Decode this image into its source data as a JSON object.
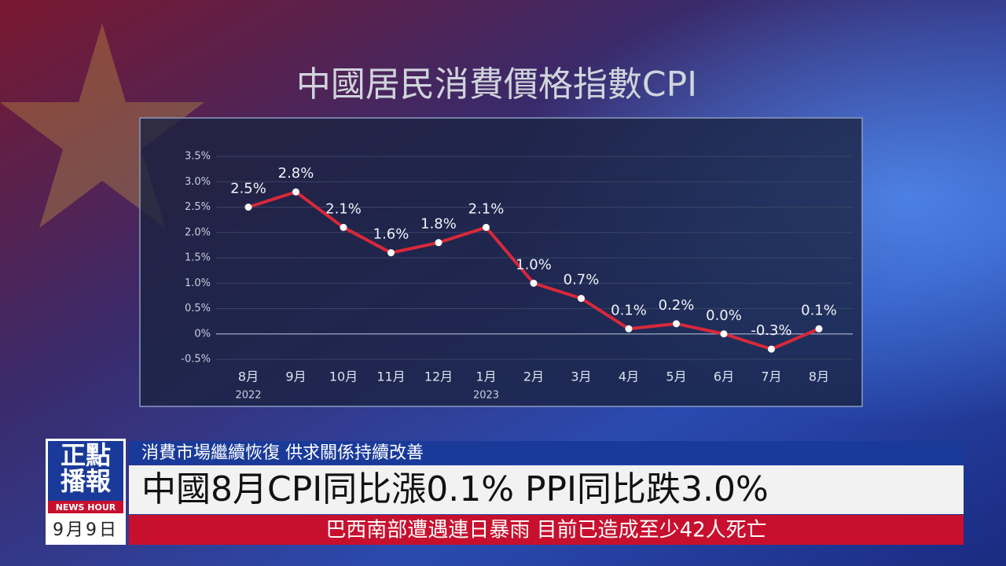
{
  "chart_data": {
    "type": "line",
    "title": "中國居民消費價格指數CPI",
    "categories": [
      "8月",
      "9月",
      "10月",
      "11月",
      "12月",
      "1月",
      "2月",
      "3月",
      "4月",
      "5月",
      "6月",
      "7月",
      "8月"
    ],
    "category_sublabels": [
      "2022",
      null,
      null,
      null,
      null,
      "2023",
      null,
      null,
      null,
      null,
      null,
      null,
      null
    ],
    "series": [
      {
        "name": "CPI",
        "color": "#d8283a",
        "values": [
          2.5,
          2.8,
          2.1,
          1.6,
          1.8,
          2.1,
          1.0,
          0.7,
          0.1,
          0.2,
          0.0,
          -0.3,
          0.1
        ],
        "value_labels": [
          "2.5%",
          "2.8%",
          "2.1%",
          "1.6%",
          "1.8%",
          "2.1%",
          "1.0%",
          "0.7%",
          "0.1%",
          "0.2%",
          "0.0%",
          "-0.3%",
          "0.1%"
        ]
      }
    ],
    "ylim": [
      -0.5,
      3.5
    ],
    "yticks": [
      {
        "value": 3.5,
        "label": "3.5%"
      },
      {
        "value": 3.0,
        "label": "3.0%"
      },
      {
        "value": 2.5,
        "label": "2.5%"
      },
      {
        "value": 2.0,
        "label": "2.0%"
      },
      {
        "value": 1.5,
        "label": "1.5%"
      },
      {
        "value": 1.0,
        "label": "1.0%"
      },
      {
        "value": 0.5,
        "label": "0.5%"
      },
      {
        "value": 0,
        "label": "0%"
      },
      {
        "value": -0.5,
        "label": "-0.5%"
      }
    ],
    "grid": true
  },
  "news": {
    "logo_line1": "正點",
    "logo_line2": "播報",
    "logo_sub": "NEWS HOUR",
    "date": "9月9日",
    "subheadline": "消費市場繼續恢復 供求關係持續改善",
    "headline": "中國8月CPI同比漲0.1% PPI同比跌3.0%",
    "crawl": "巴西南部遭遇連日暴雨 目前已造成至少42人死亡"
  }
}
